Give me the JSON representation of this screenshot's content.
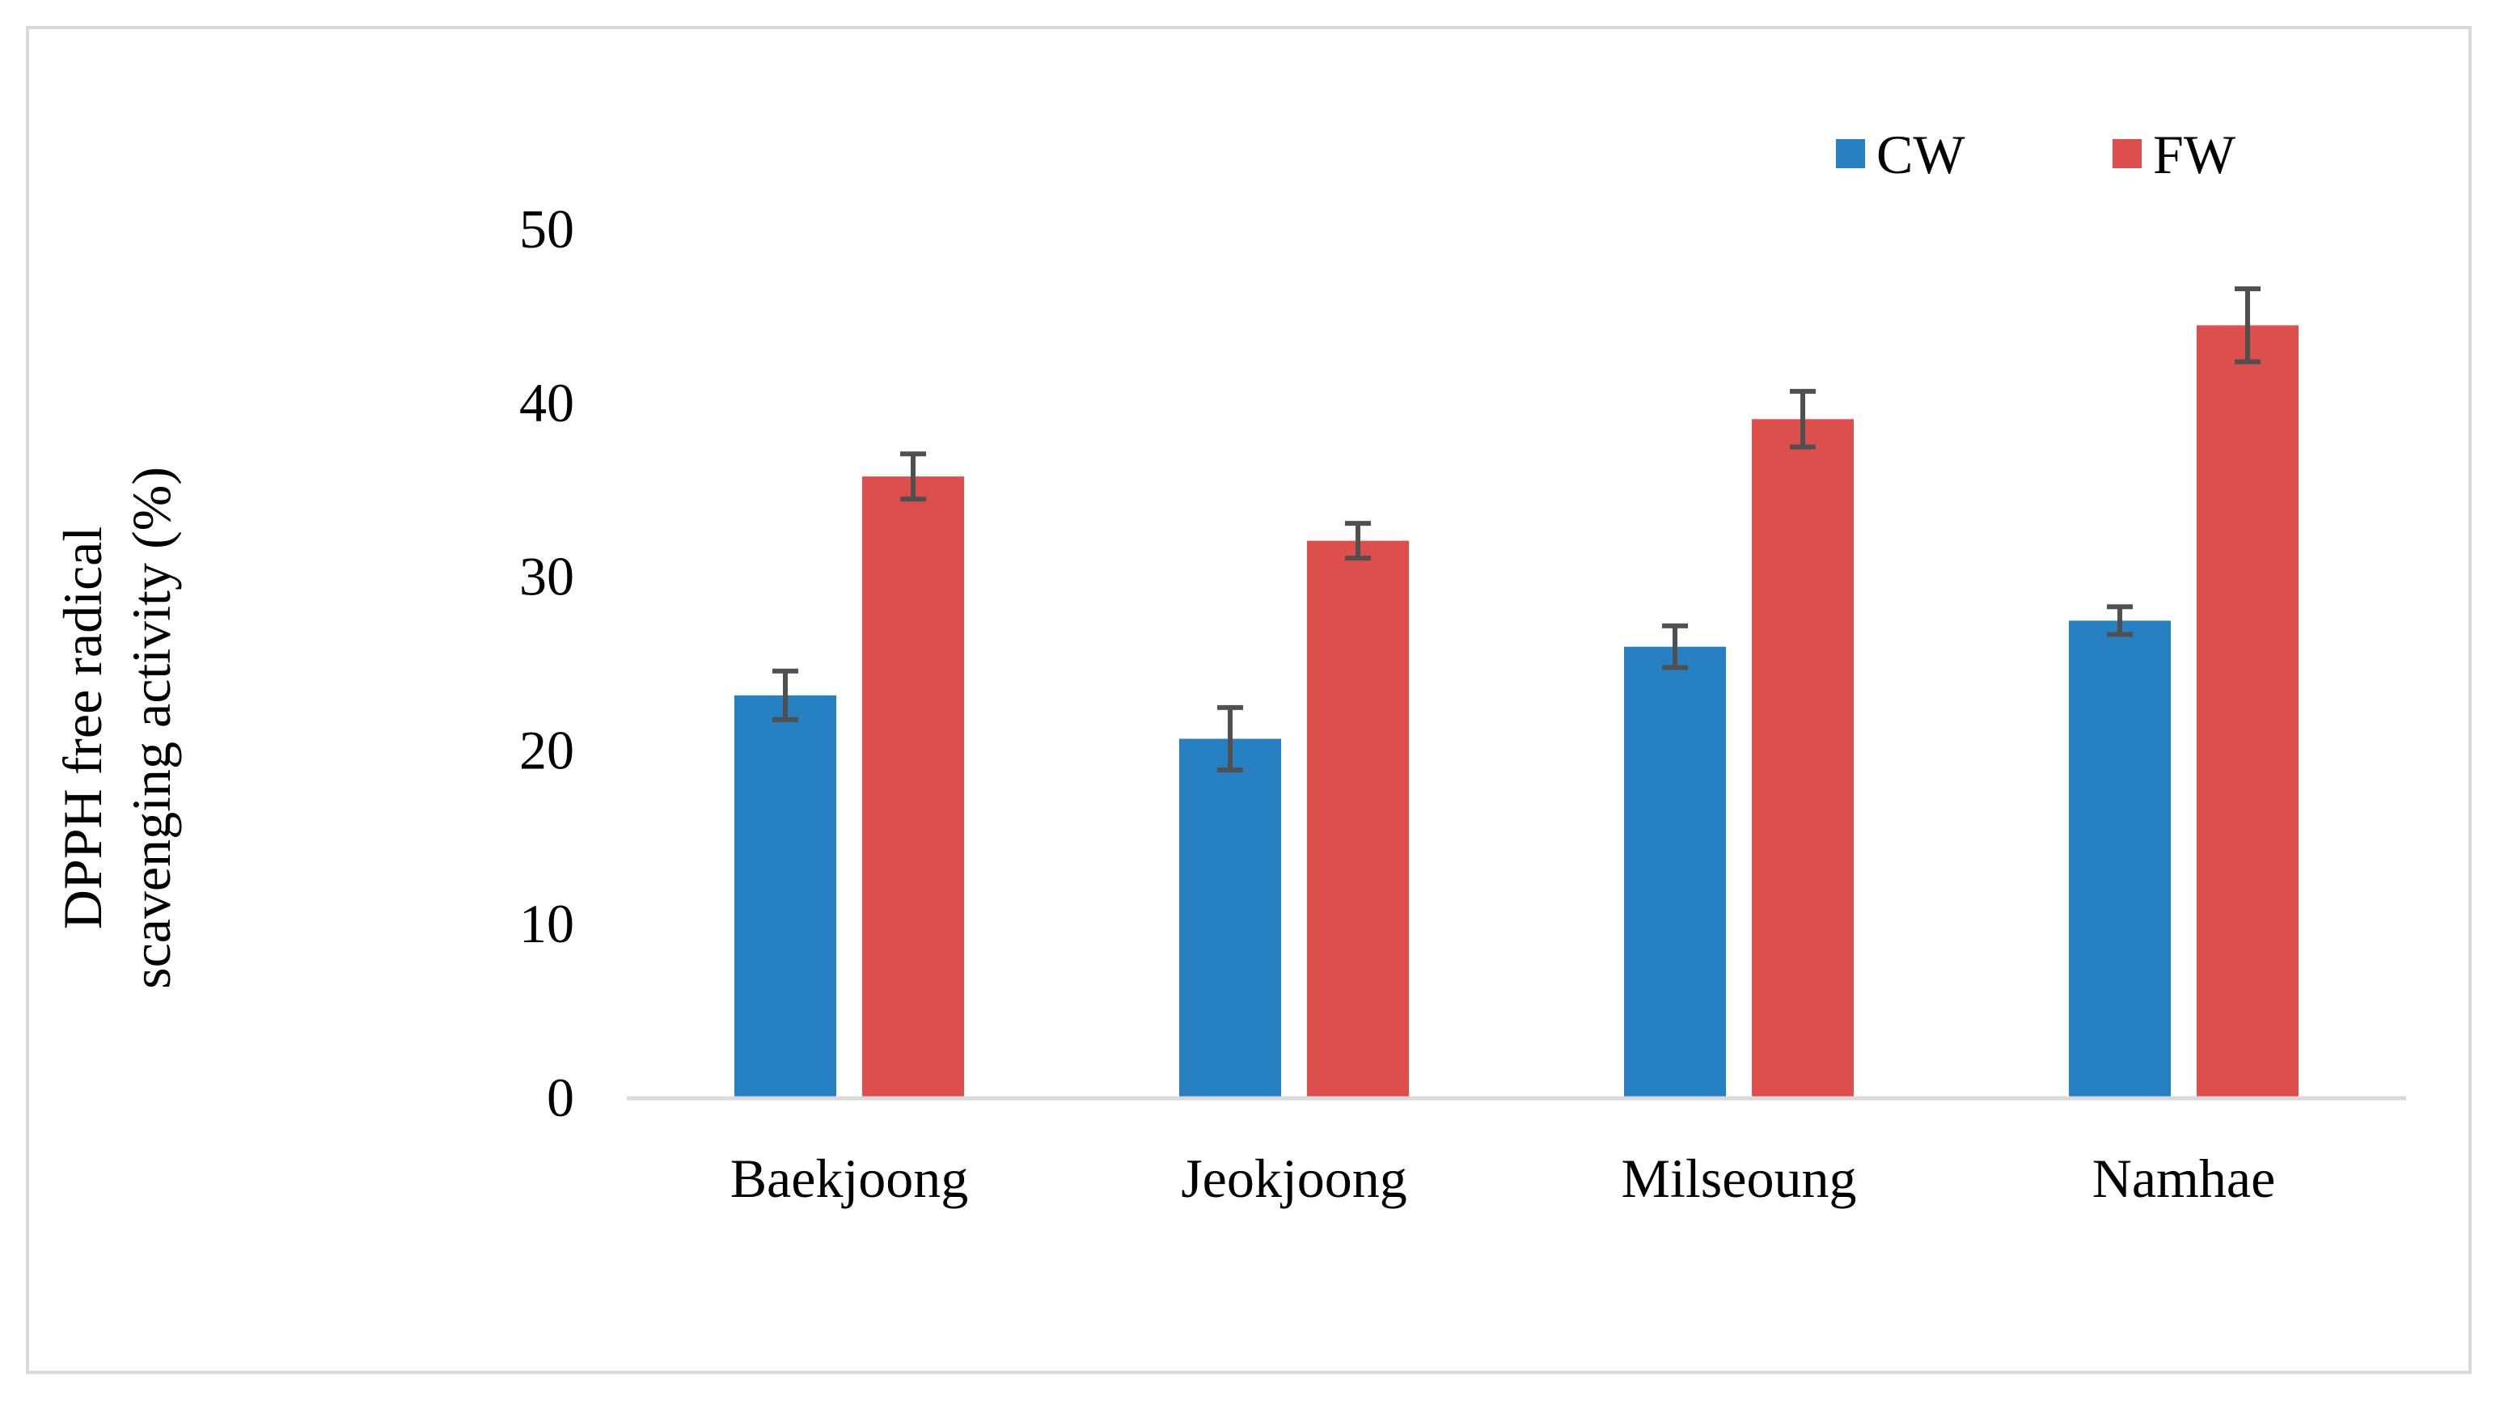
{
  "chart_data": {
    "type": "bar",
    "title": "",
    "xlabel": "",
    "ylabel_lines": [
      "DPPH free radical",
      "scavenging activity (%)"
    ],
    "categories": [
      "Baekjoong",
      "Jeokjoong",
      "Milseoung",
      "Namhae"
    ],
    "series": [
      {
        "name": "CW",
        "color": "#2780c1",
        "values": [
          23.1,
          20.6,
          25.9,
          27.4
        ],
        "errors": [
          1.4,
          1.8,
          1.2,
          0.8
        ]
      },
      {
        "name": "FW",
        "color": "#dd4f4d",
        "values": [
          35.7,
          32.0,
          39.0,
          44.4
        ],
        "errors": [
          1.3,
          1.0,
          1.6,
          2.1
        ]
      }
    ],
    "ylim": [
      0,
      50
    ],
    "yticks": [
      0,
      10,
      20,
      30,
      40,
      50
    ],
    "grid": false,
    "legend_position": "top-right",
    "error_bar_color": "#505050",
    "axis_color": "#d9d9d9"
  }
}
